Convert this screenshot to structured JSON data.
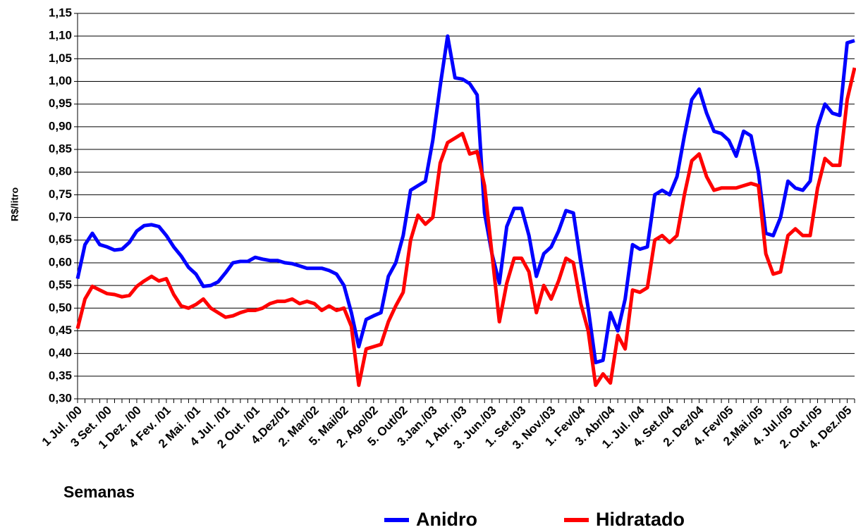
{
  "chart_data": {
    "type": "line",
    "y_label": "R$/litro",
    "x_label": "Semanas",
    "categories": [
      "1 Jul. /00",
      null,
      null,
      null,
      "3 Set. /00",
      null,
      null,
      null,
      "1 Dez. /00",
      null,
      null,
      null,
      "4 Fev. /01",
      null,
      null,
      null,
      "2 Mai. /01",
      null,
      null,
      null,
      "4 Jul. /01",
      null,
      null,
      null,
      "2 Out. /01",
      null,
      null,
      null,
      "4.Dez/01",
      null,
      null,
      null,
      "2. Mar/02",
      null,
      null,
      null,
      "5. Mai/02",
      null,
      null,
      null,
      "2. Ago/02",
      null,
      null,
      null,
      "5. Out/02",
      null,
      null,
      null,
      "3.Jan./03",
      null,
      null,
      null,
      "1 Abr. /03",
      null,
      null,
      null,
      "3. Jun./03",
      null,
      null,
      null,
      "1. Set./03",
      null,
      null,
      null,
      "3. Nov./03",
      null,
      null,
      null,
      "1. Fev/04",
      null,
      null,
      null,
      "3. Abr/04",
      null,
      null,
      null,
      "1. Jul. /04",
      null,
      null,
      null,
      "4. Set./04",
      null,
      null,
      null,
      "2. Dez/04",
      null,
      null,
      null,
      "4. Fev/05",
      null,
      null,
      null,
      "2.Mai./05",
      null,
      null,
      null,
      "4. Jul./05",
      null,
      null,
      null,
      "2. Out./05",
      null,
      null,
      null,
      "4. Dez./05",
      null
    ],
    "series": [
      {
        "name": "Anidro",
        "color": "#0000ff",
        "values": [
          0.565,
          0.64,
          0.665,
          0.64,
          0.635,
          0.628,
          0.63,
          0.645,
          0.67,
          0.682,
          0.684,
          0.68,
          0.66,
          0.635,
          0.615,
          0.59,
          0.575,
          0.548,
          0.55,
          0.558,
          0.578,
          0.6,
          0.603,
          0.603,
          0.612,
          0.608,
          0.605,
          0.605,
          0.6,
          0.598,
          0.593,
          0.588,
          0.588,
          0.588,
          0.583,
          0.575,
          0.55,
          0.49,
          0.415,
          0.475,
          0.483,
          0.49,
          0.57,
          0.6,
          0.66,
          0.76,
          0.77,
          0.78,
          0.87,
          0.99,
          1.1,
          1.008,
          1.005,
          0.995,
          0.97,
          0.71,
          0.62,
          0.555,
          0.68,
          0.72,
          0.72,
          0.66,
          0.57,
          0.62,
          0.635,
          0.67,
          0.715,
          0.71,
          0.6,
          0.5,
          0.38,
          0.385,
          0.49,
          0.45,
          0.52,
          0.64,
          0.63,
          0.635,
          0.75,
          0.76,
          0.75,
          0.79,
          0.88,
          0.96,
          0.983,
          0.93,
          0.89,
          0.885,
          0.87,
          0.835,
          0.89,
          0.88,
          0.8,
          0.665,
          0.66,
          0.7,
          0.78,
          0.765,
          0.76,
          0.78,
          0.9,
          0.95,
          0.93,
          0.925,
          1.085,
          1.09
        ]
      },
      {
        "name": "Hidratado",
        "color": "#ff0000",
        "values": [
          0.455,
          0.52,
          0.548,
          0.54,
          0.532,
          0.53,
          0.525,
          0.528,
          0.548,
          0.56,
          0.57,
          0.56,
          0.565,
          0.53,
          0.505,
          0.5,
          0.508,
          0.52,
          0.5,
          0.49,
          0.48,
          0.483,
          0.49,
          0.495,
          0.495,
          0.5,
          0.51,
          0.515,
          0.515,
          0.52,
          0.51,
          0.515,
          0.51,
          0.495,
          0.505,
          0.495,
          0.5,
          0.46,
          0.33,
          0.41,
          0.415,
          0.42,
          0.47,
          0.505,
          0.535,
          0.65,
          0.705,
          0.685,
          0.7,
          0.82,
          0.865,
          0.875,
          0.885,
          0.84,
          0.845,
          0.77,
          0.62,
          0.47,
          0.555,
          0.61,
          0.61,
          0.58,
          0.49,
          0.55,
          0.52,
          0.56,
          0.61,
          0.6,
          0.51,
          0.45,
          0.33,
          0.355,
          0.335,
          0.44,
          0.41,
          0.54,
          0.535,
          0.545,
          0.65,
          0.66,
          0.645,
          0.66,
          0.75,
          0.825,
          0.84,
          0.79,
          0.76,
          0.765,
          0.765,
          0.765,
          0.77,
          0.775,
          0.77,
          0.62,
          0.575,
          0.58,
          0.66,
          0.675,
          0.66,
          0.66,
          0.765,
          0.83,
          0.815,
          0.815,
          0.96,
          1.03
        ]
      }
    ],
    "ylim": [
      0.3,
      1.15
    ],
    "yticks": [
      {
        "value": 0.3,
        "label": "0,30"
      },
      {
        "value": 0.35,
        "label": "0,35"
      },
      {
        "value": 0.4,
        "label": "0,40"
      },
      {
        "value": 0.45,
        "label": "0,45"
      },
      {
        "value": 0.5,
        "label": "0,50"
      },
      {
        "value": 0.55,
        "label": "0,55"
      },
      {
        "value": 0.6,
        "label": "0,60"
      },
      {
        "value": 0.65,
        "label": "0,65"
      },
      {
        "value": 0.7,
        "label": "0,70"
      },
      {
        "value": 0.75,
        "label": "0,75"
      },
      {
        "value": 0.8,
        "label": "0,80"
      },
      {
        "value": 0.85,
        "label": "0,85"
      },
      {
        "value": 0.9,
        "label": "0,90"
      },
      {
        "value": 0.95,
        "label": "0,95"
      },
      {
        "value": 1.0,
        "label": "1,00"
      },
      {
        "value": 1.05,
        "label": "1,05"
      },
      {
        "value": 1.1,
        "label": "1,10"
      },
      {
        "value": 1.15,
        "label": "1,15"
      }
    ],
    "grid": true,
    "legend": "bottom"
  }
}
